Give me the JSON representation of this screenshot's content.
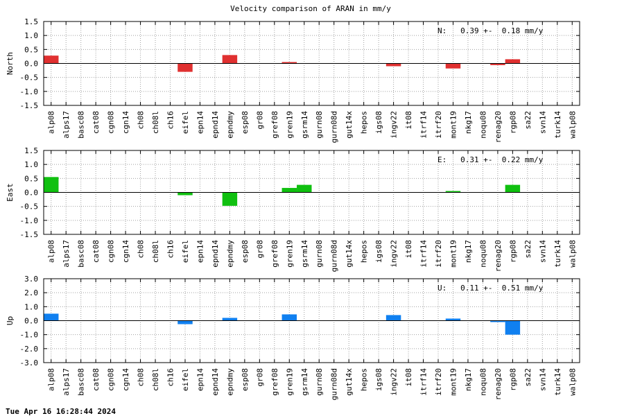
{
  "title": "Velocity comparison of ARAN in mm/y",
  "timestamp": "Tue Apr 16 16:28:44 2024",
  "chart_data": [
    {
      "type": "bar",
      "ylabel": "North",
      "ylim": [
        -1.5,
        1.5
      ],
      "yticks": [
        "1.5",
        "1.0",
        "0.5",
        "0.0",
        "-0.5",
        "-1.0",
        "-1.5"
      ],
      "ytick_values": [
        1.5,
        1.0,
        0.5,
        0.0,
        -0.5,
        -1.0,
        -1.5
      ],
      "stat_label": "N:   0.39 +-  0.18 mm/y",
      "color": "#e03030",
      "grid": true,
      "categories": [
        "alp08",
        "alps17",
        "basc08",
        "cat08",
        "cgn08",
        "cgn14",
        "ch08",
        "ch08l",
        "ch16",
        "eifel",
        "epn14",
        "epnd14",
        "epndmy",
        "esp08",
        "gr08",
        "gref08",
        "gren19",
        "gsrm14",
        "gurn08",
        "gurn08d",
        "gut14x",
        "hepos",
        "igs08",
        "ingv22",
        "it08",
        "itrf14",
        "itrf20",
        "mont19",
        "nkg17",
        "noqu08",
        "renag20",
        "rgp08",
        "sa22",
        "svn14",
        "turk14",
        "walp08"
      ],
      "values": [
        0.28,
        0,
        0,
        0,
        0,
        0,
        0,
        0,
        0,
        -0.3,
        0,
        0,
        0.3,
        0,
        0,
        0,
        0.05,
        0,
        0,
        0,
        0,
        0,
        0,
        -0.1,
        0,
        0,
        0,
        -0.18,
        0,
        0,
        -0.06,
        0.15,
        0,
        0,
        0,
        0
      ]
    },
    {
      "type": "bar",
      "ylabel": "East",
      "ylim": [
        -1.5,
        1.5
      ],
      "yticks": [
        "1.5",
        "1.0",
        "0.5",
        "0.0",
        "-0.5",
        "-1.0",
        "-1.5"
      ],
      "ytick_values": [
        1.5,
        1.0,
        0.5,
        0.0,
        -0.5,
        -1.0,
        -1.5
      ],
      "stat_label": "E:   0.31 +-  0.22 mm/y",
      "color": "#10c010",
      "grid": true,
      "categories": [
        "alp08",
        "alps17",
        "basc08",
        "cat08",
        "cgn08",
        "cgn14",
        "ch08",
        "ch08l",
        "ch16",
        "eifel",
        "epn14",
        "epnd14",
        "epndmy",
        "esp08",
        "gr08",
        "gref08",
        "gren19",
        "gsrm14",
        "gurn08",
        "gurn08d",
        "gut14x",
        "hepos",
        "igs08",
        "ingv22",
        "it08",
        "itrf14",
        "itrf20",
        "mont19",
        "nkg17",
        "noqu08",
        "renag20",
        "rgp08",
        "sa22",
        "svn14",
        "turk14",
        "walp08"
      ],
      "values": [
        0.55,
        0,
        0,
        0,
        0,
        0,
        0,
        0,
        0,
        -0.1,
        0,
        0,
        -0.48,
        0,
        0,
        0,
        0.16,
        0.27,
        0,
        0,
        0,
        0,
        0,
        0,
        0,
        0,
        0,
        0.05,
        0,
        0,
        0,
        0.27,
        0,
        0,
        0,
        0
      ]
    },
    {
      "type": "bar",
      "ylabel": "Up",
      "ylim": [
        -3.0,
        3.0
      ],
      "yticks": [
        "3.0",
        "2.0",
        "1.0",
        "0.0",
        "-1.0",
        "-2.0",
        "-3.0"
      ],
      "ytick_values": [
        3.0,
        2.0,
        1.0,
        0.0,
        -1.0,
        -2.0,
        -3.0
      ],
      "stat_label": "U:   0.11 +-  0.51 mm/y",
      "color": "#1080f0",
      "grid": true,
      "categories": [
        "alp08",
        "alps17",
        "basc08",
        "cat08",
        "cgn08",
        "cgn14",
        "ch08",
        "ch08l",
        "ch16",
        "eifel",
        "epn14",
        "epnd14",
        "epndmy",
        "esp08",
        "gr08",
        "gref08",
        "gren19",
        "gsrm14",
        "gurn08",
        "gurn08d",
        "gut14x",
        "hepos",
        "igs08",
        "ingv22",
        "it08",
        "itrf14",
        "itrf20",
        "mont19",
        "nkg17",
        "noqu08",
        "renag20",
        "rgp08",
        "sa22",
        "svn14",
        "turk14",
        "walp08"
      ],
      "values": [
        0.5,
        0,
        0,
        0,
        0,
        0,
        0,
        0,
        0,
        -0.25,
        0,
        0,
        0.2,
        0,
        0,
        0,
        0.45,
        0,
        0,
        0,
        0,
        0,
        0,
        0.4,
        0,
        0,
        0,
        0.15,
        0,
        0,
        -0.1,
        -1.0,
        0,
        0,
        0,
        0
      ]
    }
  ]
}
